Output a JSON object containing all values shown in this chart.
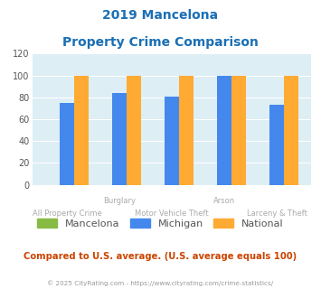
{
  "title_line1": "2019 Mancelona",
  "title_line2": "Property Crime Comparison",
  "categories": [
    "All Property Crime",
    "Burglary",
    "Motor Vehicle Theft",
    "Arson",
    "Larceny & Theft"
  ],
  "top_labels": [
    "",
    "Burglary",
    "",
    "Arson",
    ""
  ],
  "bottom_labels": [
    "All Property Crime",
    "",
    "Motor Vehicle Theft",
    "",
    "Larceny & Theft"
  ],
  "mancelona": [
    0,
    0,
    0,
    0,
    0
  ],
  "michigan": [
    75,
    84,
    81,
    100,
    73
  ],
  "national": [
    100,
    100,
    100,
    100,
    100
  ],
  "mancelona_color": "#88bb44",
  "michigan_color": "#4488ee",
  "national_color": "#ffaa33",
  "ylim": [
    0,
    120
  ],
  "yticks": [
    0,
    20,
    40,
    60,
    80,
    100,
    120
  ],
  "bg_color": "#ddeef5",
  "title_color": "#1a6fb5",
  "xlabel_color": "#aaaaaa",
  "legend_text_color": "#555555",
  "footer_text": "Compared to U.S. average. (U.S. average equals 100)",
  "copyright_text": "© 2025 CityRating.com - https://www.cityrating.com/crime-statistics/",
  "footer_color": "#cc4400",
  "copyright_color": "#999999"
}
